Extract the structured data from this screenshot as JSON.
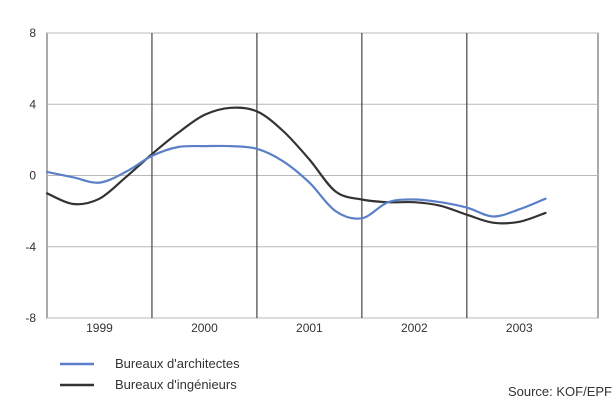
{
  "chart_data": {
    "type": "line",
    "title": "",
    "xlabel": "",
    "ylabel": "",
    "ylim": [
      -8,
      8
    ],
    "xlim": [
      1998.5,
      2003.75
    ],
    "yticks": [
      8,
      4,
      0,
      -4,
      -8
    ],
    "year_labels": [
      "1999",
      "2000",
      "2001",
      "2002",
      "2003"
    ],
    "year_positions": [
      1999,
      2000,
      2001,
      2002,
      2003
    ],
    "year_dividers": [
      1999.5,
      2000.5,
      2001.5,
      2002.5
    ],
    "grid": true,
    "legend_position": "bottom-left",
    "series": [
      {
        "name": "Bureaux d'architectes",
        "color": "#5b80c8",
        "x": [
          1998.5,
          1998.75,
          1999.0,
          1999.25,
          1999.5,
          1999.75,
          2000.0,
          2000.25,
          2000.5,
          2000.75,
          2001.0,
          2001.25,
          2001.5,
          2001.75,
          2002.0,
          2002.25,
          2002.5,
          2002.75,
          2003.0,
          2003.25
        ],
        "values": [
          0.2,
          -0.1,
          -0.4,
          0.2,
          1.1,
          1.6,
          1.65,
          1.65,
          1.5,
          0.8,
          -0.4,
          -2.0,
          -2.4,
          -1.5,
          -1.35,
          -1.5,
          -1.8,
          -2.3,
          -1.9,
          -1.3
        ]
      },
      {
        "name": "Bureaux d'ingénieurs",
        "color": "#333333",
        "x": [
          1998.5,
          1998.75,
          1999.0,
          1999.25,
          1999.5,
          1999.75,
          2000.0,
          2000.25,
          2000.5,
          2000.75,
          2001.0,
          2001.25,
          2001.5,
          2001.75,
          2002.0,
          2002.25,
          2002.5,
          2002.75,
          2003.0,
          2003.25
        ],
        "values": [
          -1.0,
          -1.6,
          -1.3,
          -0.1,
          1.2,
          2.4,
          3.4,
          3.8,
          3.6,
          2.5,
          0.9,
          -0.9,
          -1.35,
          -1.5,
          -1.5,
          -1.7,
          -2.2,
          -2.65,
          -2.6,
          -2.1
        ]
      }
    ]
  },
  "source": "Source: KOF/EPF"
}
